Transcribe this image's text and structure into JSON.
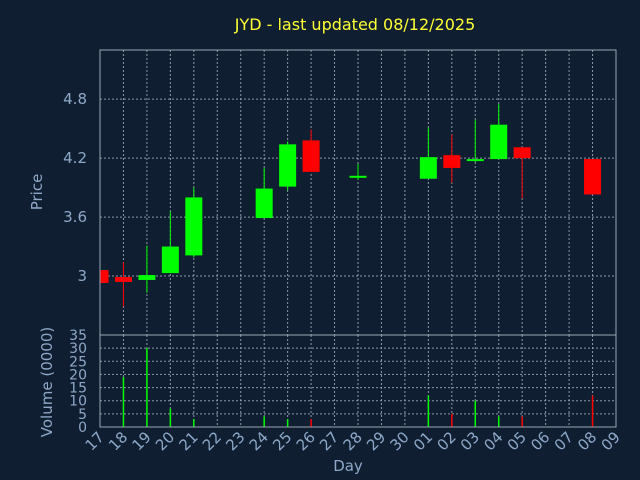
{
  "chart_data": [
    {
      "type": "candlestick",
      "title": "JYD - last updated 08/12/2025",
      "ylabel": "Price",
      "ylim": [
        2.4,
        5.3
      ],
      "yticks": [
        "3",
        "3.6",
        "4.2",
        "4.8"
      ],
      "ytick_values": [
        3.0,
        3.6,
        4.2,
        4.8
      ],
      "grid": true,
      "up_color": "#00ff00",
      "down_color": "#ff0000",
      "x": [
        "17",
        "18",
        "19",
        "20",
        "21",
        "22",
        "23",
        "24",
        "25",
        "26",
        "27",
        "28",
        "29",
        "30",
        "01",
        "02",
        "03",
        "04",
        "05",
        "06",
        "07",
        "08",
        "09"
      ],
      "candles": [
        {
          "x": "17",
          "open": 3.06,
          "high": 3.07,
          "low": 2.93,
          "close": 2.93
        },
        {
          "x": "18",
          "open": 2.99,
          "high": 3.14,
          "low": 2.69,
          "close": 2.94
        },
        {
          "x": "19",
          "open": 2.96,
          "high": 3.31,
          "low": 2.83,
          "close": 3.01
        },
        {
          "x": "20",
          "open": 3.03,
          "high": 3.66,
          "low": 3.03,
          "close": 3.3
        },
        {
          "x": "21",
          "open": 3.21,
          "high": 3.9,
          "low": 3.19,
          "close": 3.8
        },
        {
          "x": "24",
          "open": 3.59,
          "high": 4.1,
          "low": 3.59,
          "close": 3.89
        },
        {
          "x": "25",
          "open": 3.91,
          "high": 4.37,
          "low": 3.87,
          "close": 4.34
        },
        {
          "x": "26",
          "open": 4.38,
          "high": 4.49,
          "low": 4.06,
          "close": 4.06
        },
        {
          "x": "28",
          "open": 4.01,
          "high": 4.14,
          "low": 3.98,
          "close": 4.02
        },
        {
          "x": "01",
          "open": 3.99,
          "high": 4.51,
          "low": 3.99,
          "close": 4.21
        },
        {
          "x": "02",
          "open": 4.23,
          "high": 4.44,
          "low": 3.95,
          "close": 4.1
        },
        {
          "x": "03",
          "open": 4.17,
          "high": 4.59,
          "low": 4.16,
          "close": 4.19
        },
        {
          "x": "04",
          "open": 4.19,
          "high": 4.75,
          "low": 4.19,
          "close": 4.54
        },
        {
          "x": "05",
          "open": 4.31,
          "high": 4.31,
          "low": 3.79,
          "close": 4.2
        },
        {
          "x": "08",
          "open": 4.19,
          "high": 4.19,
          "low": 3.83,
          "close": 3.83
        }
      ]
    },
    {
      "type": "bar",
      "ylabel": "Volume (0000)",
      "xlabel": "Day",
      "ylim": [
        0,
        35
      ],
      "yticks": [
        "0",
        "5",
        "10",
        "15",
        "20",
        "25",
        "30",
        "35"
      ],
      "ytick_values": [
        0,
        5,
        10,
        15,
        20,
        25,
        30,
        35
      ],
      "grid": true,
      "x": [
        "17",
        "18",
        "19",
        "20",
        "21",
        "22",
        "23",
        "24",
        "25",
        "26",
        "27",
        "28",
        "29",
        "30",
        "01",
        "02",
        "03",
        "04",
        "05",
        "06",
        "07",
        "08",
        "09"
      ],
      "bars": [
        {
          "x": "18",
          "value": 19,
          "color": "#00ff00"
        },
        {
          "x": "19",
          "value": 30,
          "color": "#00ff00"
        },
        {
          "x": "20",
          "value": 7,
          "color": "#00ff00"
        },
        {
          "x": "21",
          "value": 3,
          "color": "#00ff00"
        },
        {
          "x": "24",
          "value": 4,
          "color": "#00ff00"
        },
        {
          "x": "25",
          "value": 3,
          "color": "#00ff00"
        },
        {
          "x": "26",
          "value": 3,
          "color": "#ff0000"
        },
        {
          "x": "01",
          "value": 12,
          "color": "#00ff00"
        },
        {
          "x": "02",
          "value": 5,
          "color": "#ff0000"
        },
        {
          "x": "03",
          "value": 10,
          "color": "#00ff00"
        },
        {
          "x": "04",
          "value": 4,
          "color": "#00ff00"
        },
        {
          "x": "05",
          "value": 4,
          "color": "#ff0000"
        },
        {
          "x": "08",
          "value": 12,
          "color": "#ff0000"
        }
      ]
    }
  ]
}
